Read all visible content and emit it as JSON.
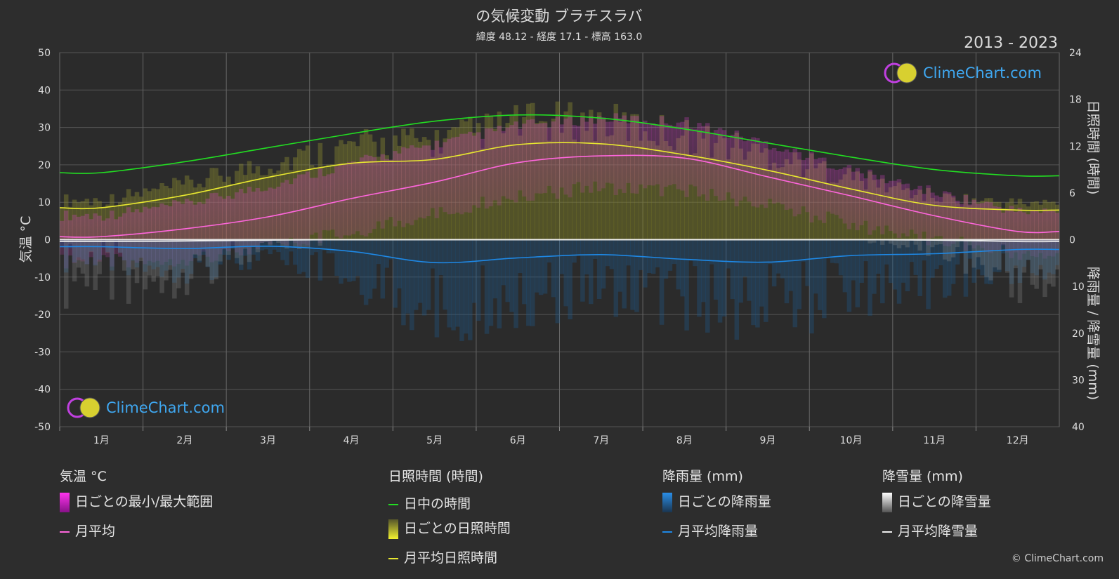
{
  "title": "の気候変動 ブラチスラバ",
  "subtitle": "緯度 48.12 - 経度 17.1 - 標高 163.0",
  "period": "2013 - 2023",
  "watermark": "ClimeChart.com",
  "copyright": "© ClimeChart.com",
  "colors": {
    "background": "#2d2d2d",
    "daylight": "#22dd22",
    "sunshine": "#e8e830",
    "temp_mean": "#ff66dd",
    "temp_range": "#cc22bb",
    "rain": "#1e88e5",
    "snow": "#eeeeee"
  },
  "legend": {
    "temp": {
      "heading": "気温 °C",
      "range": "日ごとの最小/最大範囲",
      "mean": "月平均"
    },
    "sun": {
      "heading": "日照時間 (時間)",
      "daylight": "日中の時間",
      "daily": "日ごとの日照時間",
      "mean": "月平均日照時間"
    },
    "rain": {
      "heading": "降雨量 (mm)",
      "daily": "日ごとの降雨量",
      "mean": "月平均降雨量"
    },
    "snow": {
      "heading": "降雪量 (mm)",
      "daily": "日ごとの降雪量",
      "mean": "月平均降雪量"
    }
  },
  "chart_data": {
    "type": "line",
    "categories": [
      "1月",
      "2月",
      "3月",
      "4月",
      "5月",
      "6月",
      "7月",
      "8月",
      "9月",
      "10月",
      "11月",
      "12月"
    ],
    "ylabel_left": "気温 °C",
    "ylabel_right_top": "日照時間 (時間)",
    "ylabel_right_bottom": "降雨量 / 降雪量 (mm)",
    "ylim_left": [
      -50,
      50
    ],
    "yticks_left": [
      50,
      40,
      30,
      20,
      10,
      0,
      -10,
      -20,
      -30,
      -40,
      -50
    ],
    "yticks_right_sun": [
      24,
      18,
      12,
      6,
      0
    ],
    "yticks_right_precip": [
      10,
      20,
      30,
      40
    ],
    "grid": true,
    "series": [
      {
        "name": "日中の時間",
        "unit": "hours",
        "values": [
          8.6,
          10.0,
          11.8,
          13.6,
          15.2,
          16.0,
          15.6,
          14.2,
          12.4,
          10.6,
          9.0,
          8.2
        ]
      },
      {
        "name": "月平均日照時間",
        "unit": "hours",
        "values": [
          4.1,
          5.7,
          8.0,
          9.8,
          10.3,
          12.2,
          12.3,
          10.9,
          8.9,
          6.5,
          4.4,
          3.8
        ]
      },
      {
        "name": "月平均",
        "unit": "°C",
        "values": [
          0.8,
          2.9,
          6.1,
          11.0,
          15.4,
          20.6,
          22.4,
          21.8,
          16.8,
          11.7,
          6.4,
          2.2
        ]
      },
      {
        "name": "月平均降雨量",
        "unit": "mm",
        "values": [
          1.5,
          1.9,
          1.4,
          2.5,
          4.9,
          3.9,
          3.2,
          4.2,
          4.8,
          3.4,
          3.0,
          2.1
        ]
      },
      {
        "name": "月平均降雪量",
        "unit": "mm",
        "values": [
          0.4,
          0.3,
          0.1,
          0.0,
          0.0,
          0.0,
          0.0,
          0.0,
          0.0,
          0.0,
          0.1,
          0.4
        ]
      }
    ],
    "daily_temp_range_approx": {
      "max": [
        5,
        8,
        13,
        19,
        24,
        29,
        31,
        30,
        24,
        17,
        11,
        6
      ],
      "min": [
        -4,
        -3,
        0,
        4,
        9,
        14,
        16,
        15,
        11,
        6,
        2,
        -2
      ]
    }
  }
}
